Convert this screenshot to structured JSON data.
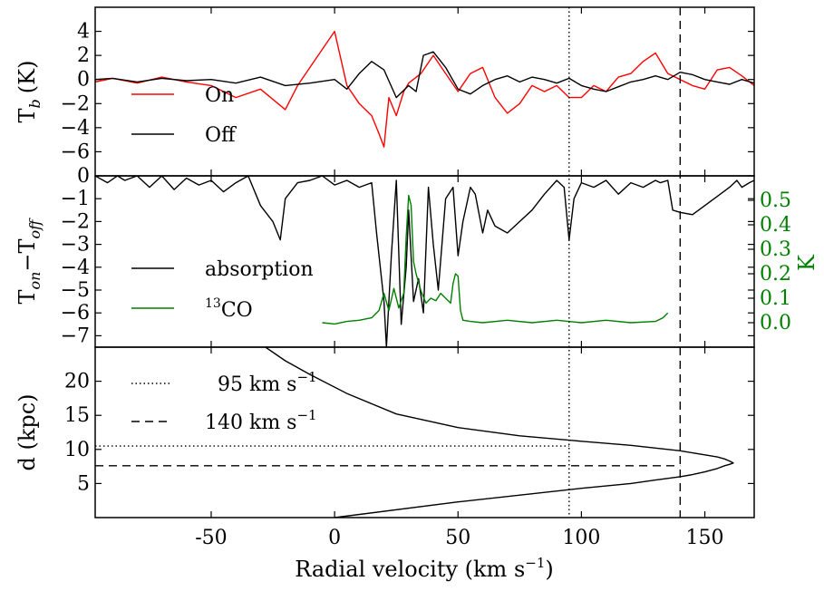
{
  "chart_data": [
    {
      "type": "line",
      "panel": "top",
      "ylabel": "T_b (K)",
      "ylabel_main": "T",
      "ylabel_sub": "b",
      "ylabel_tail": "(K)",
      "ylim": [
        -8,
        6
      ],
      "yticks": [
        4,
        2,
        0,
        -2,
        -4,
        -6
      ],
      "ytick_labels": [
        "4",
        "2",
        "0",
        "−2",
        "−4",
        "−6"
      ],
      "series": [
        {
          "name": "On",
          "color": "#ff0000",
          "x": [
            -97,
            -90,
            -80,
            -70,
            -60,
            -50,
            -40,
            -30,
            -20,
            -15,
            -10,
            -5,
            0,
            5,
            10,
            15,
            18,
            20,
            22,
            25,
            28,
            30,
            35,
            40,
            45,
            50,
            55,
            60,
            65,
            70,
            75,
            80,
            85,
            90,
            95,
            100,
            105,
            110,
            115,
            120,
            125,
            130,
            135,
            140,
            145,
            150,
            155,
            160,
            165,
            170
          ],
          "y": [
            -0.2,
            0.1,
            -0.3,
            0.2,
            -0.2,
            -0.5,
            -1.5,
            -0.8,
            -2.5,
            -0.5,
            1.0,
            2.5,
            4.0,
            -0.5,
            -2.0,
            -3.0,
            -4.5,
            -5.6,
            -1.5,
            -3.0,
            -1.0,
            -0.3,
            0.5,
            2.0,
            0.5,
            -1.0,
            0.5,
            1.0,
            -1.5,
            -2.8,
            -2.0,
            -0.5,
            -1.0,
            -0.5,
            -1.5,
            -1.5,
            -0.5,
            -1.0,
            0.2,
            0.5,
            1.5,
            2.2,
            0.5,
            0.0,
            -0.5,
            -0.8,
            0.8,
            1.0,
            0.3,
            -0.5
          ]
        },
        {
          "name": "Off",
          "color": "#000000",
          "x": [
            -97,
            -90,
            -80,
            -70,
            -60,
            -50,
            -40,
            -30,
            -20,
            -10,
            0,
            5,
            10,
            15,
            20,
            25,
            30,
            33,
            36,
            40,
            45,
            50,
            55,
            60,
            65,
            70,
            75,
            80,
            85,
            90,
            95,
            100,
            105,
            110,
            115,
            120,
            125,
            130,
            135,
            140,
            145,
            150,
            155,
            160,
            165,
            170
          ],
          "y": [
            0.0,
            0.1,
            -0.2,
            0.1,
            -0.1,
            0.0,
            -0.3,
            0.2,
            -0.5,
            -0.3,
            0.0,
            -0.8,
            0.5,
            1.5,
            0.8,
            -1.5,
            -0.5,
            -1.0,
            2.0,
            2.3,
            1.0,
            -0.8,
            -1.2,
            -0.5,
            0.0,
            0.3,
            -0.2,
            0.2,
            0.0,
            -0.3,
            0.1,
            -0.5,
            -0.8,
            -1.0,
            -0.6,
            -0.2,
            0.0,
            0.3,
            0.0,
            0.6,
            0.4,
            0.0,
            -0.2,
            -0.4,
            0.0,
            -0.3
          ]
        }
      ],
      "legend": [
        "On",
        "Off"
      ],
      "legend_placement": "lower-left"
    },
    {
      "type": "line",
      "panel": "middle",
      "ylabel_main": "T",
      "ylabel_sub1": "on",
      "ylabel_mid": "−T",
      "ylabel_sub2": "off",
      "ylim": [
        -7.5,
        0
      ],
      "yticks": [
        0,
        -1,
        -2,
        -3,
        -4,
        -5,
        -6,
        -7
      ],
      "ytick_labels": [
        "0",
        "−1",
        "−2",
        "−3",
        "−4",
        "−5",
        "−6",
        "−7"
      ],
      "y2label": "K",
      "y2lim": [
        -0.1,
        0.6
      ],
      "y2ticks": [
        0.0,
        0.1,
        0.2,
        0.3,
        0.4,
        0.5
      ],
      "y2tick_labels": [
        "0.0",
        "0.1",
        "0.2",
        "0.3",
        "0.4",
        "0.5"
      ],
      "series": [
        {
          "name": "absorption",
          "color": "#000000",
          "x": [
            -97,
            -92,
            -88,
            -85,
            -80,
            -75,
            -70,
            -65,
            -60,
            -55,
            -50,
            -45,
            -40,
            -35,
            -30,
            -25,
            -22,
            -20,
            -15,
            -10,
            -5,
            0,
            5,
            10,
            15,
            17,
            20,
            21,
            23,
            25,
            27,
            29,
            30,
            32,
            34,
            36,
            38,
            40,
            42,
            45,
            48,
            50,
            52,
            55,
            57,
            60,
            62,
            65,
            70,
            75,
            80,
            85,
            90,
            93,
            95,
            97,
            100,
            105,
            110,
            115,
            120,
            125,
            130,
            132,
            135,
            137,
            140,
            145,
            150,
            155,
            160,
            163,
            165,
            168,
            170
          ],
          "y": [
            0,
            -0.3,
            0,
            -0.2,
            0,
            -0.5,
            0,
            -0.6,
            -0.1,
            -0.4,
            -0.2,
            -0.7,
            -0.3,
            0,
            -1.3,
            -2.0,
            -2.8,
            -1.0,
            -0.3,
            -0.2,
            0,
            -0.4,
            -0.2,
            -0.5,
            -0.3,
            -2.5,
            -5.5,
            -7.5,
            -3.5,
            -0.2,
            -6.5,
            -4.0,
            -1.5,
            -5.5,
            -4.5,
            -6.0,
            -0.5,
            -3.0,
            -5.0,
            -1.0,
            -0.5,
            -3.5,
            -2.0,
            -0.5,
            -0.8,
            -2.5,
            -1.5,
            -2.2,
            -2.5,
            -2.0,
            -1.5,
            -0.8,
            -0.2,
            -0.5,
            -2.8,
            -1.0,
            -0.3,
            -0.5,
            -0.2,
            -0.8,
            -0.3,
            -0.5,
            -0.2,
            -0.3,
            -0.2,
            -1.5,
            -1.6,
            -1.7,
            -1.3,
            -0.9,
            -0.5,
            -0.2,
            -0.5,
            -0.3,
            -0.2
          ]
        },
        {
          "name": "13CO",
          "color": "#008000",
          "x": [
            -5,
            0,
            5,
            10,
            15,
            18,
            20,
            22,
            24,
            26,
            28,
            29,
            30,
            31,
            32,
            33,
            35,
            37,
            39,
            41,
            43,
            45,
            47,
            48,
            49,
            50,
            51,
            52,
            55,
            60,
            70,
            80,
            90,
            100,
            110,
            120,
            130,
            133,
            135
          ],
          "y": [
            0.0,
            -0.005,
            0.005,
            0.01,
            0.02,
            0.05,
            0.12,
            0.05,
            0.14,
            0.06,
            0.12,
            0.35,
            0.52,
            0.48,
            0.25,
            0.2,
            0.13,
            0.08,
            0.1,
            0.09,
            0.12,
            0.1,
            0.08,
            0.16,
            0.2,
            0.19,
            0.05,
            0.01,
            0.005,
            0.0,
            0.01,
            0.0,
            0.01,
            0.0,
            0.01,
            0.0,
            0.005,
            0.02,
            0.04
          ]
        }
      ],
      "legend": [
        "absorption",
        "13CO"
      ],
      "legend_placement": "lower-left"
    },
    {
      "type": "line",
      "panel": "bottom",
      "ylabel": "d (kpc)",
      "xlabel_main": "Radial velocity (km s",
      "xlabel_sup": "−1",
      "xlabel_tail": ")",
      "xlim": [
        -97,
        170
      ],
      "xticks": [
        -50,
        0,
        50,
        100,
        150
      ],
      "xtick_labels": [
        "-50",
        "0",
        "50",
        "100",
        "150"
      ],
      "ylim": [
        0,
        25
      ],
      "yticks": [
        20,
        15,
        10,
        5
      ],
      "ytick_labels": [
        "20",
        "15",
        "10",
        "5"
      ],
      "curve": {
        "color": "#000000",
        "v": [
          0,
          50,
          100,
          120,
          130,
          140,
          145,
          150,
          155,
          158,
          160,
          161.5,
          160,
          158,
          155,
          150,
          145,
          140,
          130,
          120,
          100,
          75,
          50,
          25,
          5,
          -10,
          -20,
          -28
        ],
        "d": [
          0,
          2.3,
          4.3,
          5.0,
          5.5,
          6.0,
          6.3,
          6.7,
          7.2,
          7.6,
          7.8,
          8.0,
          8.3,
          8.6,
          8.9,
          9.2,
          9.5,
          9.8,
          10.2,
          10.6,
          11.2,
          12.0,
          13.2,
          15.2,
          18.2,
          21.0,
          23.0,
          25.0
        ]
      },
      "reference_lines": [
        {
          "label_main": "95 km s",
          "label_sup": "−1",
          "velocity": 95,
          "distance": 10.5,
          "style": "dotted"
        },
        {
          "label_main": "140 km s",
          "label_sup": "−1",
          "velocity": 140,
          "distance": 7.6,
          "style": "dashed"
        }
      ],
      "legend_placement": "upper-left"
    }
  ]
}
